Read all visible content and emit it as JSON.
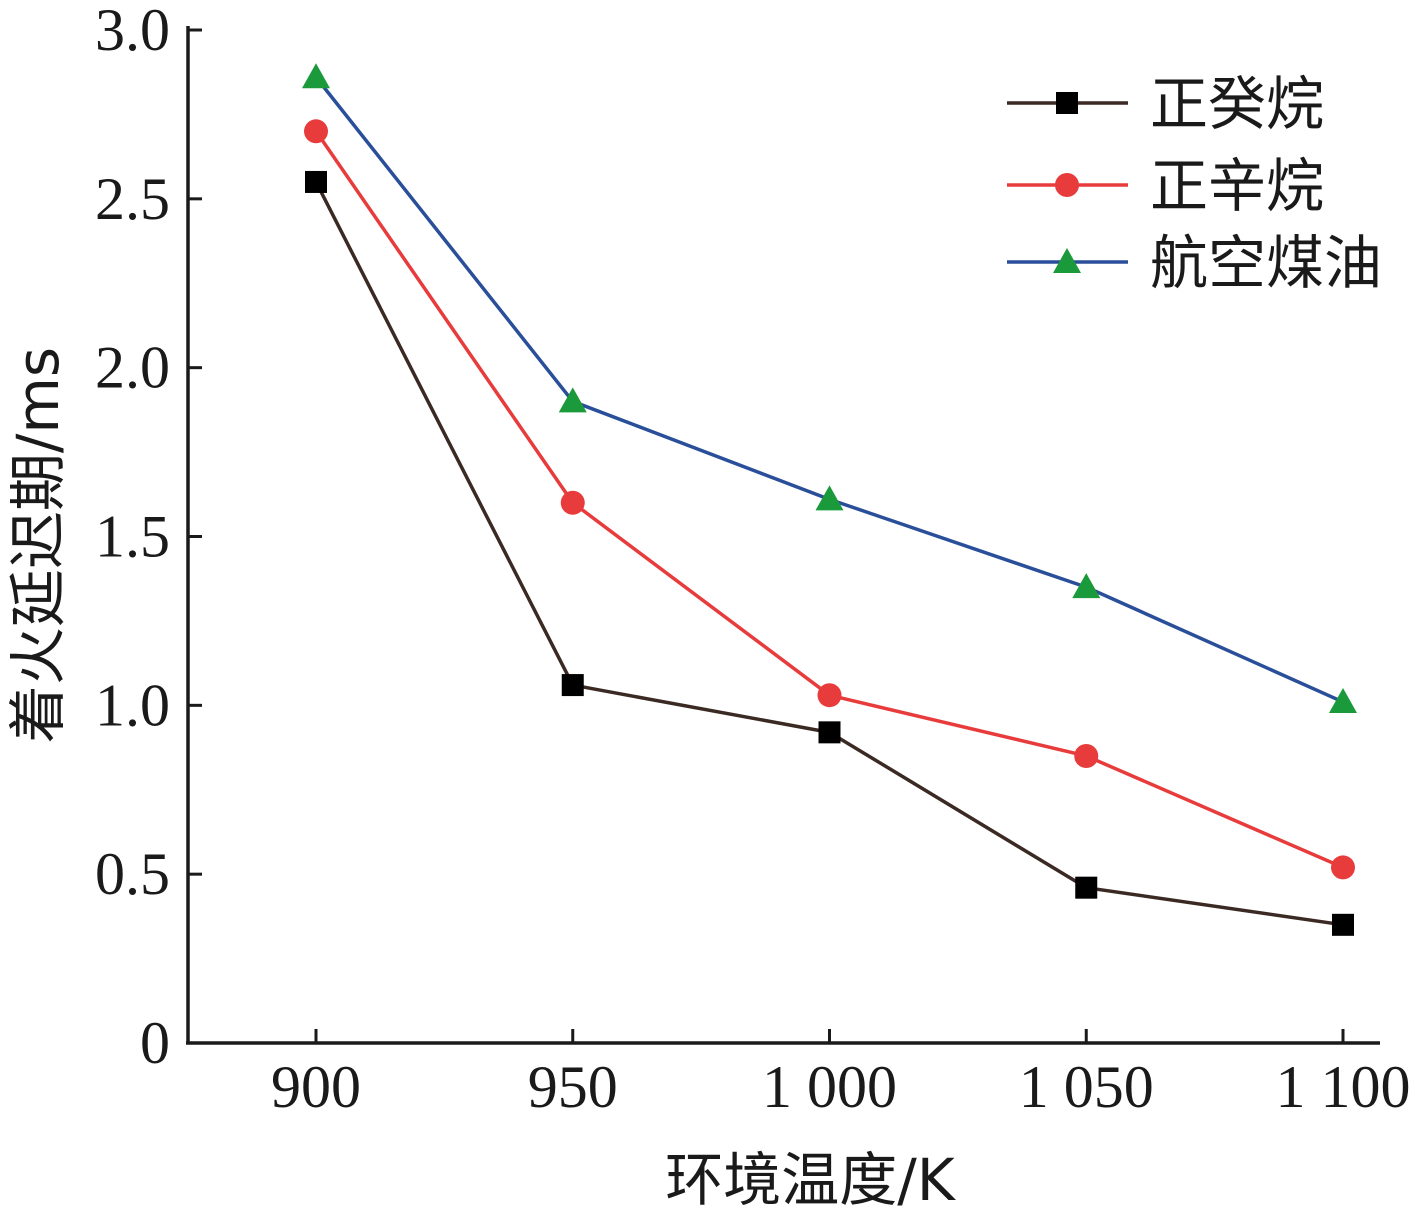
{
  "chart_data": {
    "type": "line",
    "title": "",
    "xlabel": "环境温度/K",
    "ylabel": "着火延迟期/ms",
    "x": [
      900,
      950,
      1000,
      1050,
      1100
    ],
    "x_tick_labels": [
      "900",
      "950",
      "1 000",
      "1 050",
      "1 100"
    ],
    "y_ticks": [
      0,
      0.5,
      1.0,
      1.5,
      2.0,
      2.5,
      3.0
    ],
    "y_tick_labels": [
      "0",
      "0.5",
      "1.0",
      "1.5",
      "2.0",
      "2.5",
      "3.0"
    ],
    "ylim": [
      0,
      3.0
    ],
    "grid": false,
    "legend_position": "top-right",
    "series": [
      {
        "name": "正癸烷",
        "values": [
          2.55,
          1.06,
          0.92,
          0.46,
          0.35
        ],
        "line_color": "#3b2a24",
        "marker_color": "#000000",
        "marker": "square"
      },
      {
        "name": "正辛烷",
        "values": [
          2.7,
          1.6,
          1.03,
          0.85,
          0.52
        ],
        "line_color": "#e83c3c",
        "marker_color": "#e83c3c",
        "marker": "circle"
      },
      {
        "name": "航空煤油",
        "values": [
          2.86,
          1.9,
          1.61,
          1.35,
          1.01
        ],
        "line_color": "#2a4f9a",
        "marker_color": "#1a9a3a",
        "marker": "triangle"
      }
    ]
  }
}
